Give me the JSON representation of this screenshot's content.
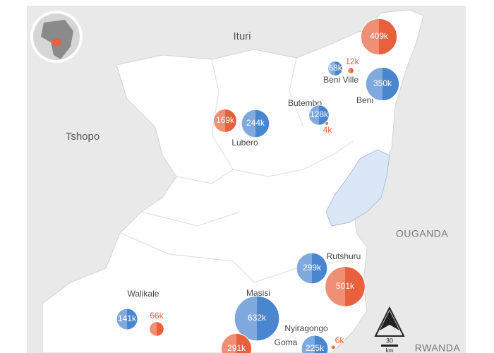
{
  "places": [
    {
      "name": "Ituri",
      "kind": "region"
    },
    {
      "name": "Tshopo",
      "kind": "region"
    },
    {
      "name": "OUGANDA",
      "kind": "country"
    },
    {
      "name": "RWANDA",
      "kind": "country"
    },
    {
      "name": "Beni Ville",
      "kind": "place"
    },
    {
      "name": "Beni",
      "kind": "place"
    },
    {
      "name": "Butembo",
      "kind": "place"
    },
    {
      "name": "Lubero",
      "kind": "place"
    },
    {
      "name": "Rutshuru",
      "kind": "place"
    },
    {
      "name": "Walikale",
      "kind": "place"
    },
    {
      "name": "Masisi",
      "kind": "place"
    },
    {
      "name": "Nyiragongo",
      "kind": "place"
    },
    {
      "name": "Goma",
      "kind": "place"
    }
  ],
  "bubbles": [
    {
      "value": 409000,
      "label": "409k",
      "color": "#e8603c"
    },
    {
      "value": 12000,
      "label": "12k",
      "color": "#e8603c"
    },
    {
      "value": 68000,
      "label": "68k",
      "color": "#4a86d0"
    },
    {
      "value": 350000,
      "label": "350k",
      "color": "#4a86d0"
    },
    {
      "value": 169000,
      "label": "169k",
      "color": "#e8603c"
    },
    {
      "value": 244000,
      "label": "244k",
      "color": "#4a86d0"
    },
    {
      "value": 128000,
      "label": "128k",
      "color": "#4a86d0"
    },
    {
      "value": 4000,
      "label": "4k",
      "color": "#e8603c"
    },
    {
      "value": 299000,
      "label": "299k",
      "color": "#4a86d0"
    },
    {
      "value": 501000,
      "label": "501k",
      "color": "#e8603c"
    },
    {
      "value": 141000,
      "label": "141k",
      "color": "#4a86d0"
    },
    {
      "value": 66000,
      "label": "66k",
      "color": "#e8603c"
    },
    {
      "value": 632000,
      "label": "632k",
      "color": "#4a86d0"
    },
    {
      "value": 291000,
      "label": "291k",
      "color": "#e8603c"
    },
    {
      "value": 225000,
      "label": "225k",
      "color": "#4a86d0"
    },
    {
      "value": 6000,
      "label": "6k",
      "color": "#e8603c"
    }
  ],
  "scale": {
    "value": 30,
    "unit": "km"
  }
}
